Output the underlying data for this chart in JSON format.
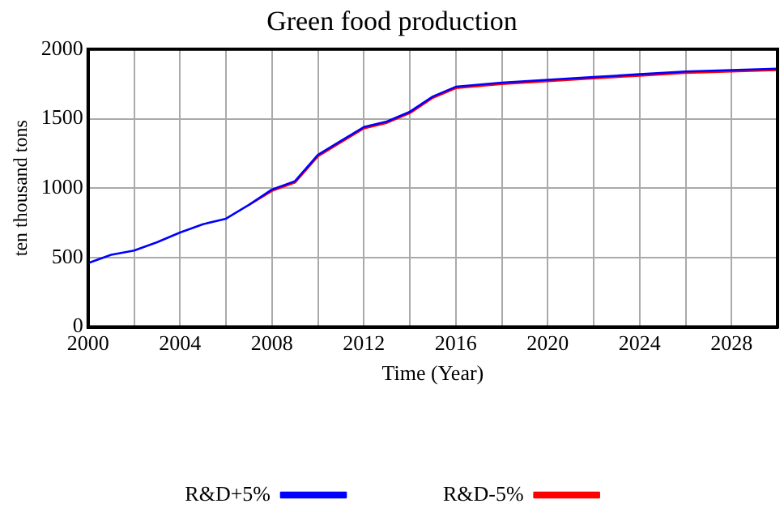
{
  "chart_data": {
    "type": "line",
    "title": "Green food production",
    "xlabel": "Time (Year)",
    "ylabel": "ten thousand tons",
    "x": [
      2000,
      2001,
      2002,
      2003,
      2004,
      2005,
      2006,
      2007,
      2008,
      2009,
      2010,
      2011,
      2012,
      2013,
      2014,
      2015,
      2016,
      2018,
      2020,
      2022,
      2024,
      2026,
      2028,
      2030
    ],
    "series": [
      {
        "name": "R&D+5%",
        "color": "#0000ff",
        "values": [
          460,
          520,
          550,
          610,
          680,
          740,
          780,
          880,
          990,
          1050,
          1240,
          1340,
          1440,
          1480,
          1550,
          1660,
          1730,
          1760,
          1780,
          1800,
          1820,
          1840,
          1850,
          1860
        ]
      },
      {
        "name": "R&D-5%",
        "color": "#ff0000",
        "values": [
          null,
          null,
          null,
          null,
          null,
          null,
          null,
          880,
          980,
          1040,
          1230,
          1330,
          1430,
          1470,
          1540,
          1650,
          1720,
          1750,
          1770,
          1790,
          1810,
          1830,
          1840,
          1850
        ]
      }
    ],
    "xlim": [
      2000,
      2030
    ],
    "xticks": [
      2000,
      {
        "value": 2002,
        "label": null
      },
      2004,
      {
        "value": 2006,
        "label": null
      },
      2008,
      {
        "value": 2010,
        "label": null
      },
      2012,
      {
        "value": 2014,
        "label": null
      },
      2016,
      {
        "value": 2018,
        "label": null
      },
      2020,
      {
        "value": 2022,
        "label": null
      },
      2024,
      {
        "value": 2026,
        "label": null
      },
      2028
    ],
    "ylim": [
      0,
      2000
    ],
    "yticks": [
      0,
      500,
      1000,
      1500,
      2000
    ],
    "grid": true,
    "legend": "bottom",
    "marker": "none",
    "line_style": "solid"
  }
}
